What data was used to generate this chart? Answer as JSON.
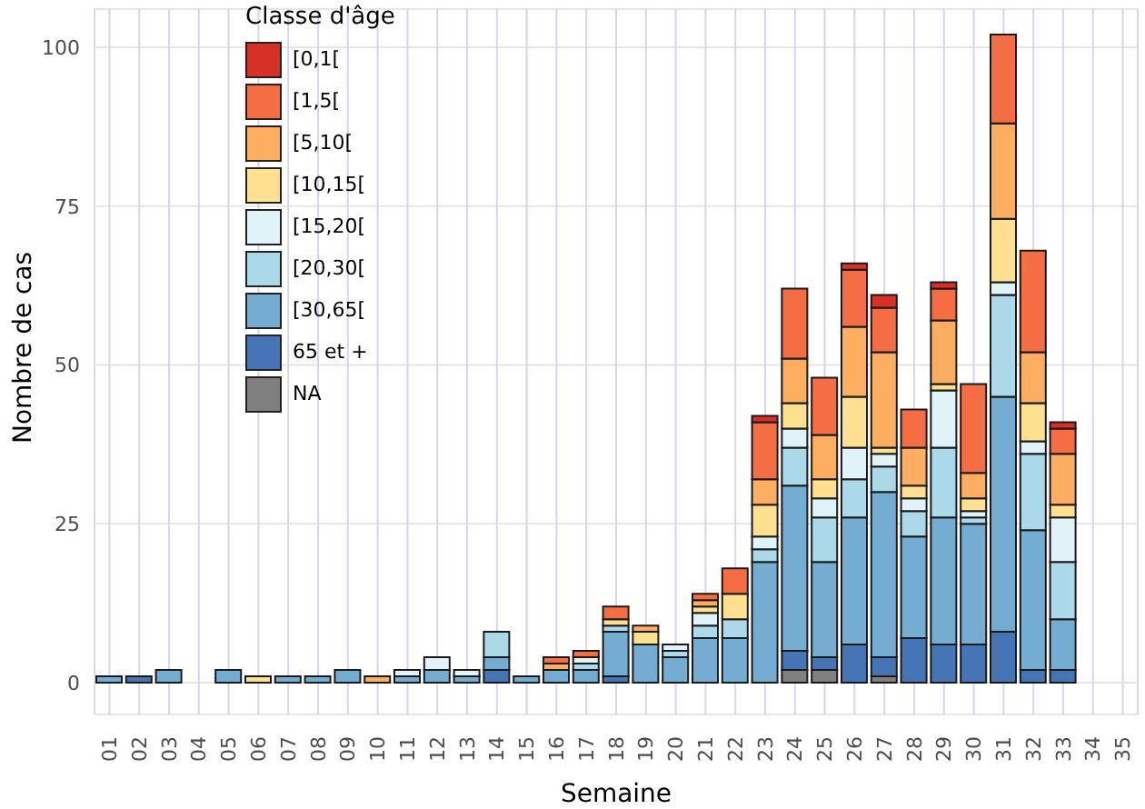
{
  "chart_data": {
    "type": "bar",
    "stacked": true,
    "categories": [
      "01",
      "02",
      "03",
      "04",
      "05",
      "06",
      "07",
      "08",
      "09",
      "10",
      "11",
      "12",
      "13",
      "14",
      "15",
      "16",
      "17",
      "18",
      "19",
      "20",
      "21",
      "22",
      "23",
      "24",
      "25",
      "26",
      "27",
      "28",
      "29",
      "30",
      "31",
      "32",
      "33",
      "34",
      "35"
    ],
    "xlabel": "Semaine",
    "ylabel": "Nombre de cas",
    "legend_title": "Classe d'âge",
    "ylim": [
      -5,
      106
    ],
    "yticks": [
      0,
      25,
      50,
      75,
      100
    ],
    "grid": true,
    "legend": "top left",
    "series": [
      {
        "name": "NA",
        "color": "#808080",
        "values": [
          0,
          0,
          0,
          0,
          0,
          0,
          0,
          0,
          0,
          0,
          0,
          0,
          0,
          0,
          0,
          0,
          0,
          0,
          0,
          0,
          0,
          0,
          0,
          2,
          2,
          0,
          1,
          0,
          0,
          0,
          0,
          0,
          0,
          0,
          0
        ]
      },
      {
        "name": "65 et +",
        "color": "#4575b4",
        "values": [
          0,
          1,
          0,
          0,
          0,
          0,
          0,
          0,
          0,
          0,
          0,
          0,
          0,
          2,
          0,
          0,
          0,
          1,
          0,
          0,
          0,
          0,
          0,
          3,
          2,
          6,
          3,
          7,
          6,
          6,
          8,
          2,
          2,
          0,
          0
        ]
      },
      {
        "name": "[30,65[",
        "color": "#74add1",
        "values": [
          1,
          0,
          2,
          0,
          2,
          0,
          1,
          1,
          2,
          0,
          1,
          2,
          1,
          2,
          1,
          2,
          2,
          7,
          6,
          4,
          7,
          7,
          19,
          26,
          15,
          20,
          26,
          16,
          20,
          19,
          37,
          22,
          8,
          0,
          0
        ]
      },
      {
        "name": "[20,30[",
        "color": "#abd9e9",
        "values": [
          0,
          0,
          0,
          0,
          0,
          0,
          0,
          0,
          0,
          0,
          0,
          0,
          0,
          4,
          0,
          0,
          1,
          1,
          0,
          1,
          2,
          3,
          2,
          6,
          7,
          6,
          4,
          4,
          11,
          1,
          16,
          12,
          9,
          0,
          0
        ]
      },
      {
        "name": "[15,20[",
        "color": "#e0f3f8",
        "values": [
          0,
          0,
          0,
          0,
          0,
          0,
          0,
          0,
          0,
          0,
          1,
          2,
          1,
          0,
          0,
          0,
          1,
          0,
          0,
          1,
          2,
          0,
          2,
          3,
          3,
          5,
          2,
          2,
          9,
          1,
          2,
          2,
          7,
          0,
          0
        ]
      },
      {
        "name": "[10,15[",
        "color": "#fee090",
        "values": [
          0,
          0,
          0,
          0,
          0,
          1,
          0,
          0,
          0,
          0,
          0,
          0,
          0,
          0,
          0,
          0,
          0,
          1,
          2,
          0,
          1,
          4,
          5,
          4,
          3,
          8,
          1,
          2,
          1,
          2,
          10,
          6,
          2,
          0,
          0
        ]
      },
      {
        "name": "[5,10[",
        "color": "#fdae61",
        "values": [
          0,
          0,
          0,
          0,
          0,
          0,
          0,
          0,
          0,
          1,
          0,
          0,
          0,
          0,
          0,
          1,
          0,
          0,
          1,
          0,
          1,
          0,
          4,
          7,
          7,
          11,
          15,
          6,
          10,
          4,
          15,
          8,
          8,
          0,
          0
        ]
      },
      {
        "name": "[1,5[",
        "color": "#f46d43",
        "values": [
          0,
          0,
          0,
          0,
          0,
          0,
          0,
          0,
          0,
          0,
          0,
          0,
          0,
          0,
          0,
          1,
          1,
          2,
          0,
          0,
          1,
          4,
          9,
          11,
          9,
          9,
          7,
          6,
          5,
          14,
          14,
          16,
          4,
          0,
          0
        ]
      },
      {
        "name": "[0,1[",
        "color": "#d73027",
        "values": [
          0,
          0,
          0,
          0,
          0,
          0,
          0,
          0,
          0,
          0,
          0,
          0,
          0,
          0,
          0,
          0,
          0,
          0,
          0,
          0,
          0,
          0,
          1,
          0,
          0,
          1,
          2,
          0,
          1,
          0,
          0,
          0,
          1,
          0,
          0
        ]
      }
    ]
  }
}
